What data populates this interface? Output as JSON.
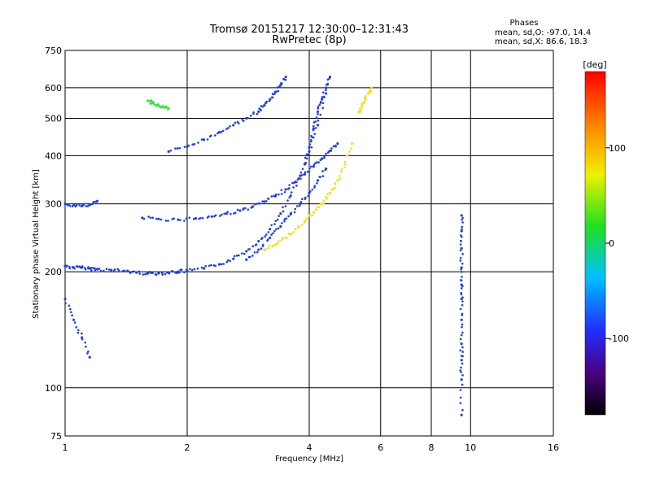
{
  "chart_data": {
    "type": "scatter",
    "title": "Tromsø 20151217 12:30:00–12:31:43",
    "subtitle": "RwPretec (8p)",
    "xlabel": "Frequency [MHz]",
    "ylabel": "Stationary phase Virtual Height [km]",
    "x_scale": "log",
    "y_scale": "log",
    "xlim": [
      1,
      16
    ],
    "ylim": [
      75,
      750
    ],
    "x_ticks": [
      1,
      2,
      4,
      6,
      8,
      10,
      16
    ],
    "y_ticks": [
      75,
      100,
      200,
      300,
      400,
      500,
      600,
      750
    ],
    "grid": true,
    "stats": {
      "heading": "Phases",
      "o_line": "mean, sd,O: -97.0, 14.4",
      "x_line": "mean, sd,X: 86.6, 18.3"
    },
    "colorbar": {
      "label": "[deg]",
      "range": [
        -180,
        180
      ],
      "ticks": [
        100,
        0,
        -100
      ],
      "colormap": "rainbow"
    },
    "series": [
      {
        "color_value": -100,
        "color": "#1f3fe0",
        "traces": [
          {
            "x": [
              1.0,
              1.05,
              1.1,
              1.15,
              1.2,
              1.3,
              1.4,
              1.5,
              1.6,
              1.7,
              1.8,
              1.9,
              2.0,
              2.2,
              2.4,
              2.6,
              2.8,
              3.0,
              3.2,
              3.4,
              3.6,
              3.8,
              4.0,
              4.2,
              4.4
            ],
            "y": [
              207,
              205,
              205,
              204,
              203,
              202,
              201,
              199,
              198,
              198,
              199,
              200,
              201,
              204,
              209,
              216,
              226,
              240,
              258,
              283,
              315,
              355,
              410,
              480,
              580
            ]
          },
          {
            "x": [
              1.55,
              1.7,
              1.9,
              2.1,
              2.3,
              2.5,
              2.7,
              2.9,
              3.1,
              3.3,
              3.5,
              3.7,
              3.9,
              4.1,
              4.3,
              4.5,
              4.7
            ],
            "y": [
              276,
              274,
              273,
              275,
              278,
              283,
              288,
              295,
              304,
              314,
              327,
              342,
              358,
              375,
              393,
              412,
              430
            ]
          },
          {
            "x": [
              1.8,
              2.0,
              2.2,
              2.4,
              2.6,
              2.8,
              3.0,
              3.1,
              3.2,
              3.3,
              3.4,
              3.5
            ],
            "y": [
              410,
              422,
              440,
              460,
              480,
              500,
              520,
              540,
              560,
              585,
              610,
              640
            ]
          },
          {
            "x": [
              2.8,
              3.0,
              3.2,
              3.4,
              3.6,
              3.8,
              4.0,
              4.2,
              4.4
            ],
            "y": [
              215,
              228,
              245,
              262,
              282,
              300,
              320,
              345,
              370
            ]
          },
          {
            "x": [
              3.9,
              4.0,
              4.1,
              4.2,
              4.3,
              4.4,
              4.5
            ],
            "y": [
              380,
              420,
              470,
              520,
              560,
              600,
              640
            ]
          },
          {
            "x": [
              1.0,
              1.05,
              1.1,
              1.15,
              1.2
            ],
            "y": [
              300,
              298,
              296,
              298,
              305
            ]
          },
          {
            "x": [
              1.0,
              1.05,
              1.1,
              1.15
            ],
            "y": [
              170,
              150,
              135,
              120
            ]
          }
        ]
      },
      {
        "color_value": 100,
        "color": "#f0e020",
        "traces": [
          {
            "x": [
              3.1,
              3.3,
              3.5,
              3.7,
              3.9,
              4.1,
              4.3,
              4.5,
              4.7,
              4.9,
              5.1
            ],
            "y": [
              228,
              235,
              245,
              258,
              270,
              285,
              300,
              320,
              345,
              380,
              430
            ]
          },
          {
            "x": [
              5.3,
              5.4,
              5.5,
              5.6,
              5.7
            ],
            "y": [
              520,
              540,
              560,
              580,
              600
            ]
          }
        ]
      },
      {
        "color_value": 20,
        "color": "#40e040",
        "traces": [
          {
            "x": [
              1.6,
              1.65,
              1.7,
              1.75,
              1.8
            ],
            "y": [
              555,
              548,
              540,
              534,
              530
            ]
          }
        ]
      },
      {
        "color_value": -100,
        "color": "#1f3fe0",
        "traces": [
          {
            "x": [
              9.5,
              9.5,
              9.5,
              9.5,
              9.5,
              9.5,
              9.5,
              9.5,
              9.5,
              9.5,
              9.5
            ],
            "y": [
              85,
              105,
              118,
              130,
              150,
              170,
              185,
              205,
              230,
              255,
              280
            ]
          }
        ]
      }
    ]
  }
}
